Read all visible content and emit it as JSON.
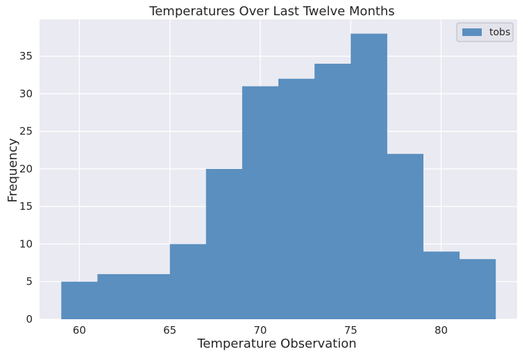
{
  "chart_data": {
    "type": "bar",
    "title": "Temperatures Over Last Twelve Months",
    "xlabel": "Temperature Observation",
    "ylabel": "Frequency",
    "xlim": [
      57.8,
      84.2
    ],
    "ylim": [
      0,
      39.9
    ],
    "xticks": [
      60,
      65,
      70,
      75,
      80
    ],
    "yticks": [
      0,
      5,
      10,
      15,
      20,
      25,
      30,
      35
    ],
    "grid": true,
    "legend_position": "top-right",
    "series": [
      {
        "name": "tobs",
        "color": "#5a8fbf",
        "bins": [
          {
            "x0": 59,
            "x1": 61,
            "count": 5
          },
          {
            "x0": 61,
            "x1": 63,
            "count": 6
          },
          {
            "x0": 63,
            "x1": 65,
            "count": 6
          },
          {
            "x0": 65,
            "x1": 67,
            "count": 10
          },
          {
            "x0": 67,
            "x1": 69,
            "count": 20
          },
          {
            "x0": 69,
            "x1": 71,
            "count": 31
          },
          {
            "x0": 71,
            "x1": 73,
            "count": 32
          },
          {
            "x0": 73,
            "x1": 75,
            "count": 34
          },
          {
            "x0": 75,
            "x1": 77,
            "count": 38
          },
          {
            "x0": 77,
            "x1": 79,
            "count": 22
          },
          {
            "x0": 79,
            "x1": 81,
            "count": 9
          },
          {
            "x0": 81,
            "x1": 83,
            "count": 8
          }
        ]
      }
    ]
  },
  "colors": {
    "plot_background": "#eaeaf2",
    "grid": "#ffffff",
    "legend_background": "#e3e3ec",
    "legend_border": "#b9b9c3"
  }
}
